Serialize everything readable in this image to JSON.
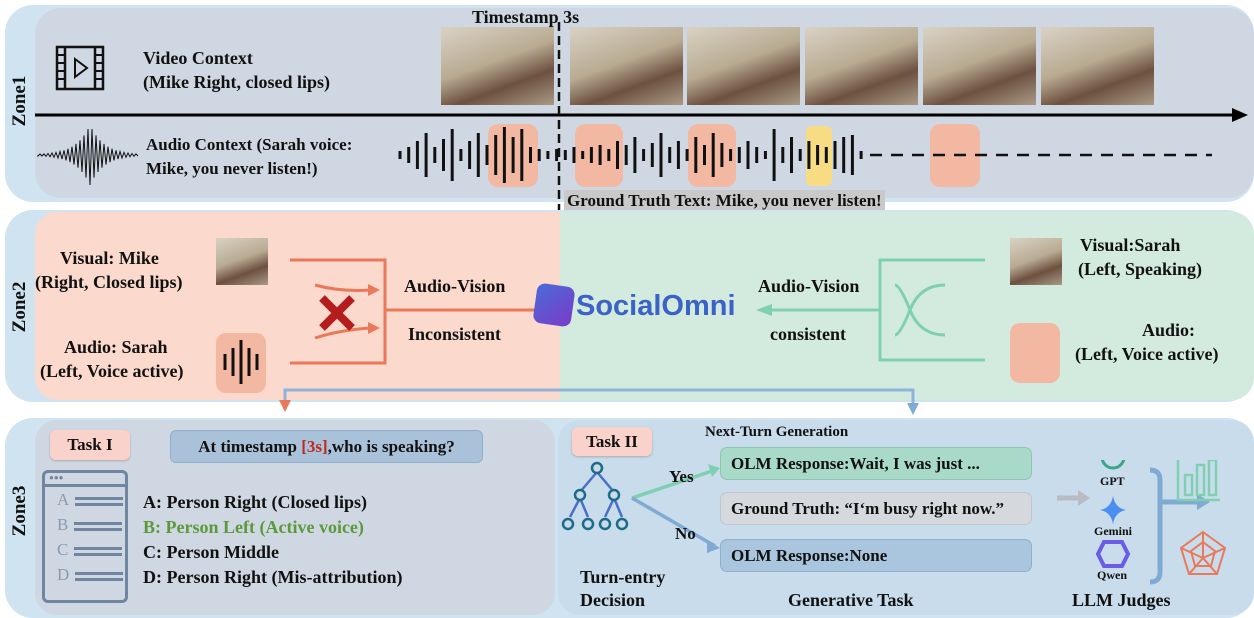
{
  "zone1": {
    "label": "Zone1",
    "timestamp": "Timestamp 3s",
    "video_title": "Video Context",
    "video_sub": "(Mike Right, closed lips)",
    "audio_line1": "Audio Context (Sarah voice:",
    "audio_line2": "Mike, you never listen!)",
    "ground_truth": "Ground Truth Text: Mike, you never listen!"
  },
  "zone2": {
    "label": "Zone2",
    "left_visual_1": "Visual: Mike",
    "left_visual_2": "(Right, Closed lips)",
    "left_audio_1": "Audio: Sarah",
    "left_audio_2": "(Left, Voice active)",
    "left_relation_1": "Audio-Vision",
    "left_relation_2": "Inconsistent",
    "brand": "SocialOmni",
    "right_relation_1": "Audio-Vision",
    "right_relation_2": "consistent",
    "right_visual_1": "Visual:Sarah",
    "right_visual_2": "(Left, Speaking)",
    "right_audio_1": "Audio:",
    "right_audio_2": "(Left, Voice active)"
  },
  "zone3": {
    "label": "Zone3",
    "task1": {
      "tag": "Task I",
      "question_pre": "At timestamp ",
      "question_ts": "[3s]",
      "question_post": ",who is speaking?",
      "list_letters": [
        "A",
        "B",
        "C",
        "D"
      ],
      "options": [
        "A: Person Right (Closed lips)",
        "B: Person Left (Active voice)",
        "C: Person Middle",
        "D: Person Right (Mis-attribution)"
      ],
      "correct_index": 1
    },
    "task2": {
      "tag": "Task II",
      "heading": "Next-Turn Generation",
      "yes": "Yes",
      "no": "No",
      "resp_yes": "OLM Response:Wait, I was just ...",
      "ground_truth": "Ground Truth: “I‘m busy right now.”",
      "resp_no": "OLM Response:None",
      "decision_1": "Turn-entry",
      "decision_2": "Decision",
      "generative": "Generative Task",
      "judges": [
        "GPT",
        "Gemini",
        "Qwen"
      ],
      "judges_label": "LLM Judges"
    }
  },
  "colors": {
    "zone1": "#cfd8e2",
    "zone2_left": "#fbd9cc",
    "zone2_right": "#d3ebdf",
    "zone3_left": "#cfd8e2",
    "zone3_right": "#c8dcec",
    "accent_red": "#c0281e",
    "correct_green": "#5b9a3a",
    "audio_highlight": "#f2b8a2",
    "yellow_highlight": "#f7dc84"
  }
}
